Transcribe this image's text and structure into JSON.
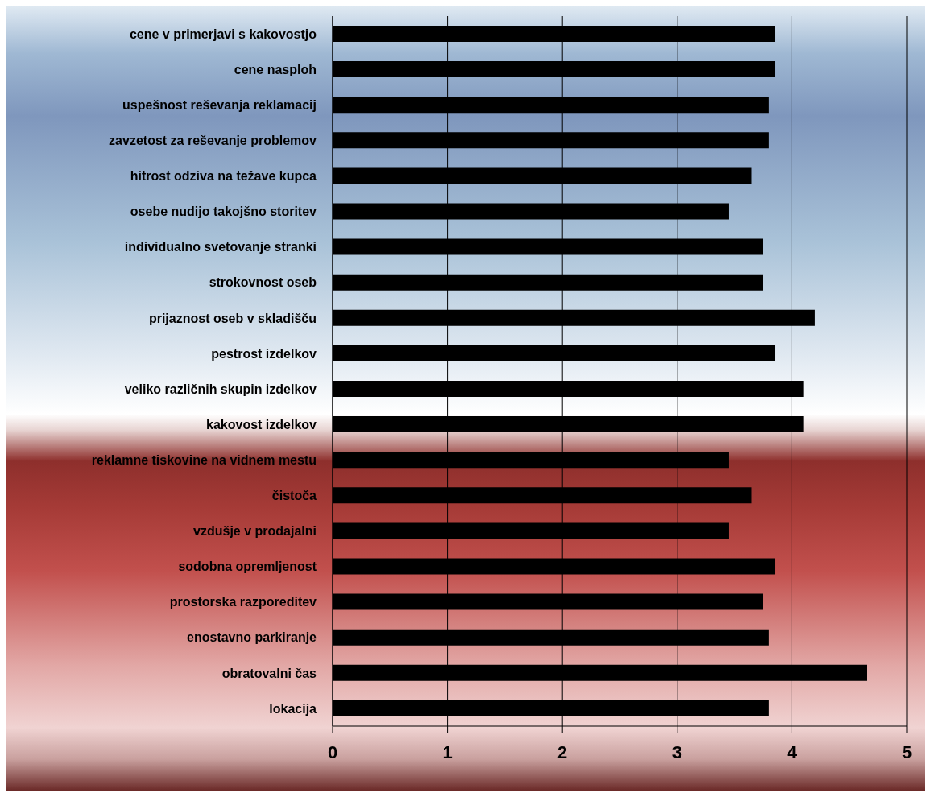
{
  "chart_data": {
    "type": "bar",
    "orientation": "horizontal",
    "categories": [
      "cene v primerjavi s kakovostjo",
      "cene nasploh",
      "uspešnost reševanja reklamacij",
      "zavzetost za reševanje problemov",
      "hitrost odziva na težave kupca",
      "osebe nudijo takojšno storitev",
      "individualno svetovanje stranki",
      "strokovnost oseb",
      "prijaznost oseb v skladišču",
      "pestrost izdelkov",
      "veliko različnih skupin izdelkov",
      "kakovost izdelkov",
      "reklamne tiskovine na vidnem mestu",
      "čistoča",
      "vzdušje v prodajalni",
      "sodobna opremljenost",
      "prostorska razporeditev",
      "enostavno parkiranje",
      "obratovalni čas",
      "lokacija"
    ],
    "values": [
      3.85,
      3.85,
      3.8,
      3.8,
      3.65,
      3.45,
      3.75,
      3.75,
      4.2,
      3.85,
      4.1,
      4.1,
      3.45,
      3.65,
      3.45,
      3.85,
      3.75,
      3.8,
      4.65,
      3.8
    ],
    "color": "#000000",
    "xlim": [
      0,
      5
    ],
    "xticks": [
      0,
      1,
      2,
      3,
      4,
      5
    ],
    "grid": "x"
  }
}
